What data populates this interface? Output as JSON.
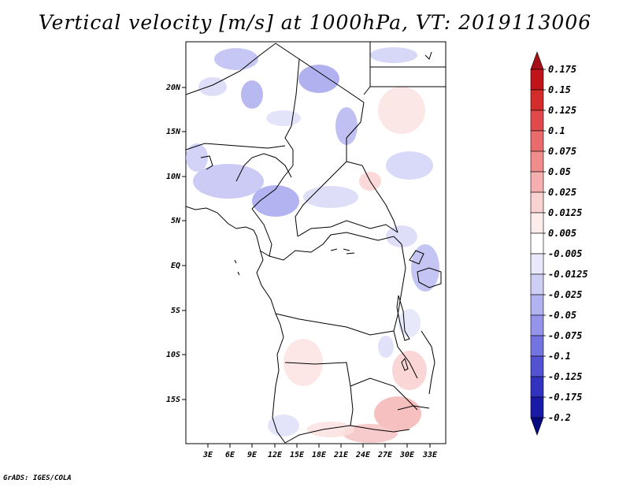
{
  "title": "Vertical velocity [m/s] at 1000hPa, VT: 2019113006",
  "footer": "GrADS: IGES/COLA",
  "map": {
    "lat_labels": [
      "20N",
      "15N",
      "10N",
      "5N",
      "EQ",
      "5S",
      "10S",
      "15S"
    ],
    "lon_labels": [
      "3E",
      "6E",
      "9E",
      "12E",
      "15E",
      "18E",
      "21E",
      "24E",
      "27E",
      "30E",
      "33E"
    ]
  },
  "colorbar": {
    "labels": [
      "0.175",
      "0.15",
      "0.125",
      "0.1",
      "0.075",
      "0.05",
      "0.025",
      "0.0125",
      "0.005",
      "-0.005",
      "-0.0125",
      "-0.025",
      "-0.05",
      "-0.075",
      "-0.1",
      "-0.125",
      "-0.175",
      "-0.2"
    ],
    "colors": [
      "#a50f15",
      "#c0141a",
      "#d42b2b",
      "#e04a4a",
      "#e96b6b",
      "#f08c8c",
      "#f6afaf",
      "#fad2d2",
      "#fdecec",
      "#ffffff",
      "#e9e9fb",
      "#cfcff6",
      "#b2b2f0",
      "#9494ea",
      "#7474e0",
      "#5252d2",
      "#3232c0",
      "#1a1aa8",
      "#0a0a80"
    ]
  }
}
